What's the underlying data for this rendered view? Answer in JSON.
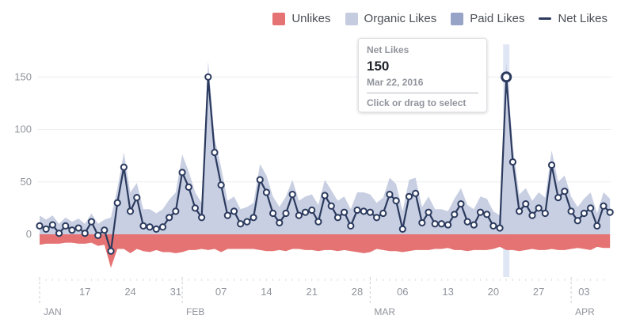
{
  "legend": {
    "unlikes": "Unlikes",
    "organic": "Organic Likes",
    "paid": "Paid Likes",
    "net": "Net Likes"
  },
  "tooltip": {
    "label": "Net Likes",
    "value": "150",
    "date": "Mar 22, 2016",
    "hint": "Click or drag to select"
  },
  "colors": {
    "unlikes": "#e57373",
    "organic": "#c5cce0",
    "paid": "#97a3c7",
    "net": "#2b3a5e",
    "highlight": "#d6dff0",
    "grid": "#ebedf0",
    "axis_text": "#90949c"
  },
  "chart_data": {
    "type": "area",
    "title": "",
    "xlabel": "",
    "ylabel": "",
    "ylim": [
      -38,
      170
    ],
    "yticks": [
      0,
      50,
      100,
      150
    ],
    "grid": true,
    "legend_position": "top-right",
    "x_start": "2016-01-10",
    "x_end": "2016-04-06",
    "x_ticks": [
      {
        "date": "2016-01-17",
        "label": "17"
      },
      {
        "date": "2016-01-24",
        "label": "24"
      },
      {
        "date": "2016-01-31",
        "label": "31"
      },
      {
        "date": "2016-02-07",
        "label": "07"
      },
      {
        "date": "2016-02-14",
        "label": "14"
      },
      {
        "date": "2016-02-21",
        "label": "21"
      },
      {
        "date": "2016-02-28",
        "label": "28"
      },
      {
        "date": "2016-03-06",
        "label": "06"
      },
      {
        "date": "2016-03-13",
        "label": "13"
      },
      {
        "date": "2016-03-20",
        "label": "20"
      },
      {
        "date": "2016-03-27",
        "label": "27"
      },
      {
        "date": "2016-04-03",
        "label": "03"
      }
    ],
    "month_labels": [
      {
        "date": "2016-01-10",
        "label": "JAN"
      },
      {
        "date": "2016-02-01",
        "label": "FEB"
      },
      {
        "date": "2016-03-01",
        "label": "MAR"
      },
      {
        "date": "2016-04-01",
        "label": "APR"
      }
    ],
    "highlight_date": "2016-03-22",
    "series": [
      {
        "name": "Net Likes",
        "values": [
          8,
          5,
          9,
          1,
          8,
          4,
          6,
          1,
          12,
          -1,
          4,
          -16,
          30,
          64,
          22,
          35,
          8,
          7,
          5,
          7,
          16,
          22,
          59,
          45,
          25,
          16,
          150,
          78,
          47,
          18,
          22,
          10,
          12,
          16,
          52,
          40,
          20,
          11,
          20,
          38,
          18,
          21,
          23,
          12,
          37,
          27,
          16,
          21,
          8,
          23,
          22,
          21,
          16,
          20,
          38,
          32,
          5,
          36,
          39,
          11,
          21,
          10,
          10,
          9,
          19,
          29,
          12,
          9,
          21,
          19,
          8,
          6,
          150,
          69,
          22,
          29,
          18,
          25,
          20,
          66,
          35,
          41,
          22,
          13,
          20,
          25,
          8,
          27,
          21
        ]
      },
      {
        "name": "Organic Likes",
        "values": [
          18,
          14,
          18,
          10,
          16,
          12,
          15,
          10,
          20,
          10,
          14,
          16,
          44,
          78,
          40,
          49,
          24,
          24,
          20,
          24,
          33,
          40,
          76,
          60,
          40,
          30,
          165,
          92,
          64,
          32,
          36,
          24,
          26,
          30,
          67,
          56,
          36,
          26,
          36,
          52,
          32,
          36,
          38,
          28,
          52,
          42,
          32,
          36,
          24,
          40,
          40,
          38,
          30,
          35,
          54,
          48,
          22,
          52,
          54,
          26,
          36,
          24,
          24,
          22,
          34,
          44,
          28,
          24,
          36,
          34,
          22,
          18,
          165,
          84,
          38,
          44,
          32,
          40,
          35,
          80,
          50,
          56,
          36,
          26,
          34,
          40,
          20,
          40,
          34
        ]
      },
      {
        "name": "Paid Likes",
        "values": [
          0,
          0,
          0,
          0,
          0,
          0,
          0,
          0,
          0,
          0,
          0,
          0,
          0,
          0,
          0,
          0,
          0,
          0,
          0,
          0,
          0,
          0,
          0,
          0,
          0,
          0,
          0,
          0,
          0,
          0,
          0,
          0,
          0,
          0,
          0,
          0,
          0,
          0,
          0,
          0,
          0,
          0,
          0,
          0,
          0,
          0,
          0,
          0,
          0,
          0,
          0,
          0,
          0,
          0,
          0,
          0,
          0,
          0,
          0,
          0,
          0,
          0,
          0,
          0,
          0,
          0,
          0,
          0,
          0,
          0,
          0,
          0,
          0,
          0,
          0,
          0,
          0,
          0,
          0,
          0,
          0,
          0,
          0,
          0,
          0,
          0,
          0,
          0,
          0
        ]
      },
      {
        "name": "Unlikes",
        "values": [
          -10,
          -9,
          -9,
          -9,
          -8,
          -8,
          -9,
          -9,
          -8,
          -11,
          -10,
          -32,
          -14,
          -14,
          -18,
          -14,
          -16,
          -17,
          -15,
          -17,
          -17,
          -18,
          -17,
          -15,
          -15,
          -14,
          -15,
          -14,
          -17,
          -14,
          -14,
          -14,
          -14,
          -14,
          -15,
          -16,
          -16,
          -15,
          -16,
          -14,
          -14,
          -15,
          -15,
          -16,
          -15,
          -15,
          -16,
          -15,
          -16,
          -17,
          -18,
          -17,
          -14,
          -15,
          -16,
          -16,
          -17,
          -16,
          -15,
          -15,
          -15,
          -14,
          -14,
          -13,
          -15,
          -15,
          -16,
          -15,
          -15,
          -15,
          -14,
          -12,
          -15,
          -15,
          -16,
          -15,
          -14,
          -15,
          -15,
          -14,
          -15,
          -15,
          -14,
          -13,
          -14,
          -15,
          -12,
          -13,
          -13
        ]
      }
    ]
  }
}
